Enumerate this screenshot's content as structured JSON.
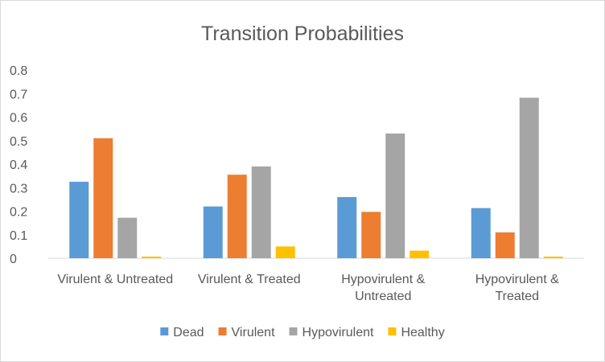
{
  "chart_data": {
    "type": "bar",
    "title": "Transition Probabilities",
    "xlabel": "",
    "ylabel": "",
    "ylim": [
      0,
      0.8
    ],
    "yticks": [
      "0",
      "0.1",
      "0.2",
      "0.3",
      "0.4",
      "0.5",
      "0.6",
      "0.7",
      "0.8"
    ],
    "categories": [
      [
        "Virulent & Untreated"
      ],
      [
        "Virulent & Treated"
      ],
      [
        "Hypovirulent &",
        "Untreated"
      ],
      [
        "Hypovirulent &",
        "Treated"
      ]
    ],
    "series": [
      {
        "name": "Dead",
        "color": "#5b9bd5",
        "values": [
          0.325,
          0.22,
          0.26,
          0.213
        ]
      },
      {
        "name": "Virulent",
        "color": "#ed7d31",
        "values": [
          0.51,
          0.355,
          0.197,
          0.11
        ]
      },
      {
        "name": "Hypovirulent",
        "color": "#a5a5a5",
        "values": [
          0.172,
          0.39,
          0.53,
          0.682
        ]
      },
      {
        "name": "Healthy",
        "color": "#ffc000",
        "values": [
          0.007,
          0.05,
          0.032,
          0.007
        ]
      }
    ],
    "legend_position": "bottom",
    "grid": false
  }
}
